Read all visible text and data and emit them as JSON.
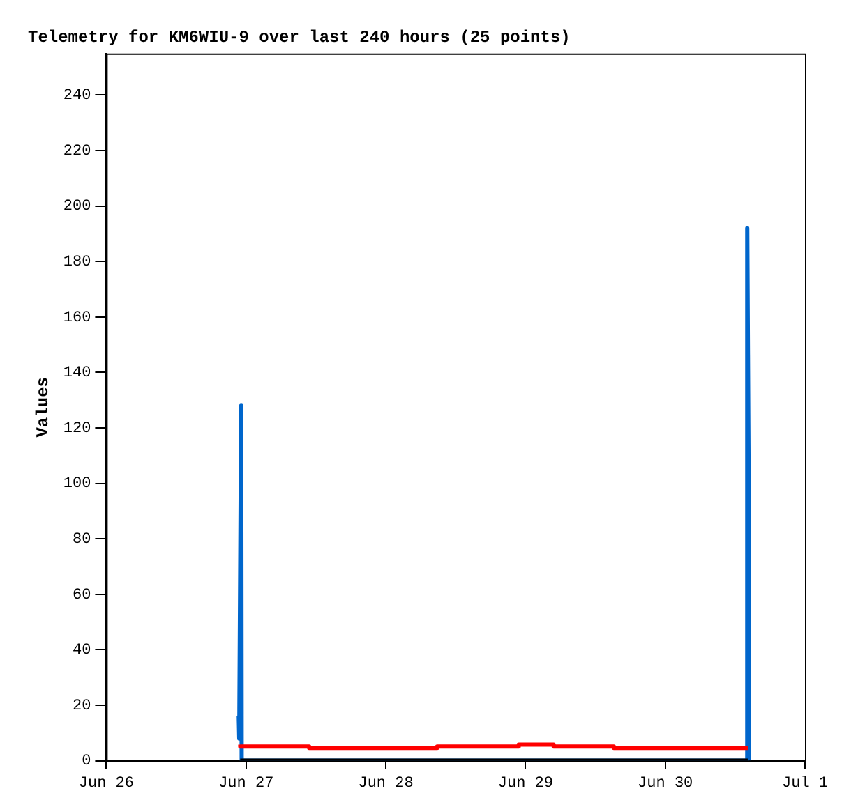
{
  "chart_data": {
    "type": "line",
    "title": "Telemetry for KM6WIU-9 over last 240 hours (25 points)",
    "ylabel": "Values",
    "xlim": [
      "--06-26",
      "--07-01"
    ],
    "xticks": [
      {
        "value": "--06-26",
        "label": "Jun 26"
      },
      {
        "value": "--06-27",
        "label": "Jun 27"
      },
      {
        "value": "--06-28",
        "label": "Jun 28"
      },
      {
        "value": "--06-29",
        "label": "Jun 29"
      },
      {
        "value": "--06-30",
        "label": "Jun 30"
      },
      {
        "value": "--07-01",
        "label": "Jul 1"
      }
    ],
    "ylim": [
      0,
      255
    ],
    "yticks": [
      0,
      20,
      40,
      60,
      80,
      100,
      120,
      140,
      160,
      180,
      200,
      220,
      240
    ],
    "grid": false,
    "legend": false,
    "marker": "none",
    "series": [
      {
        "type": "step",
        "color": "#ff0000",
        "x": [
          "--06-26T23:00",
          "--06-27T10:50",
          "--06-28T08:50",
          "--06-28T22:50",
          "--06-29T04:50",
          "--06-29T15:10",
          "--06-30T06:30",
          "--06-30T14:10"
        ],
        "values": [
          5.8,
          5.1,
          4.6,
          5.1,
          5.8,
          5.1,
          4.6,
          4.6
        ]
      },
      {
        "color": "#000000",
        "x": [
          "--06-26T23:00",
          "--06-30T14:10"
        ],
        "values": [
          0,
          0
        ]
      },
      {
        "color": "#0066cc",
        "x": [
          "--06-26T22:45",
          "--06-26T22:50",
          "--06-26T23:10",
          "--06-26T23:15",
          "--06-30T14:00",
          "--06-30T14:05",
          "--06-30T14:20",
          "--06-30T14:25"
        ],
        "values": [
          16,
          8,
          128,
          0,
          0,
          192,
          96,
          0
        ]
      }
    ]
  }
}
